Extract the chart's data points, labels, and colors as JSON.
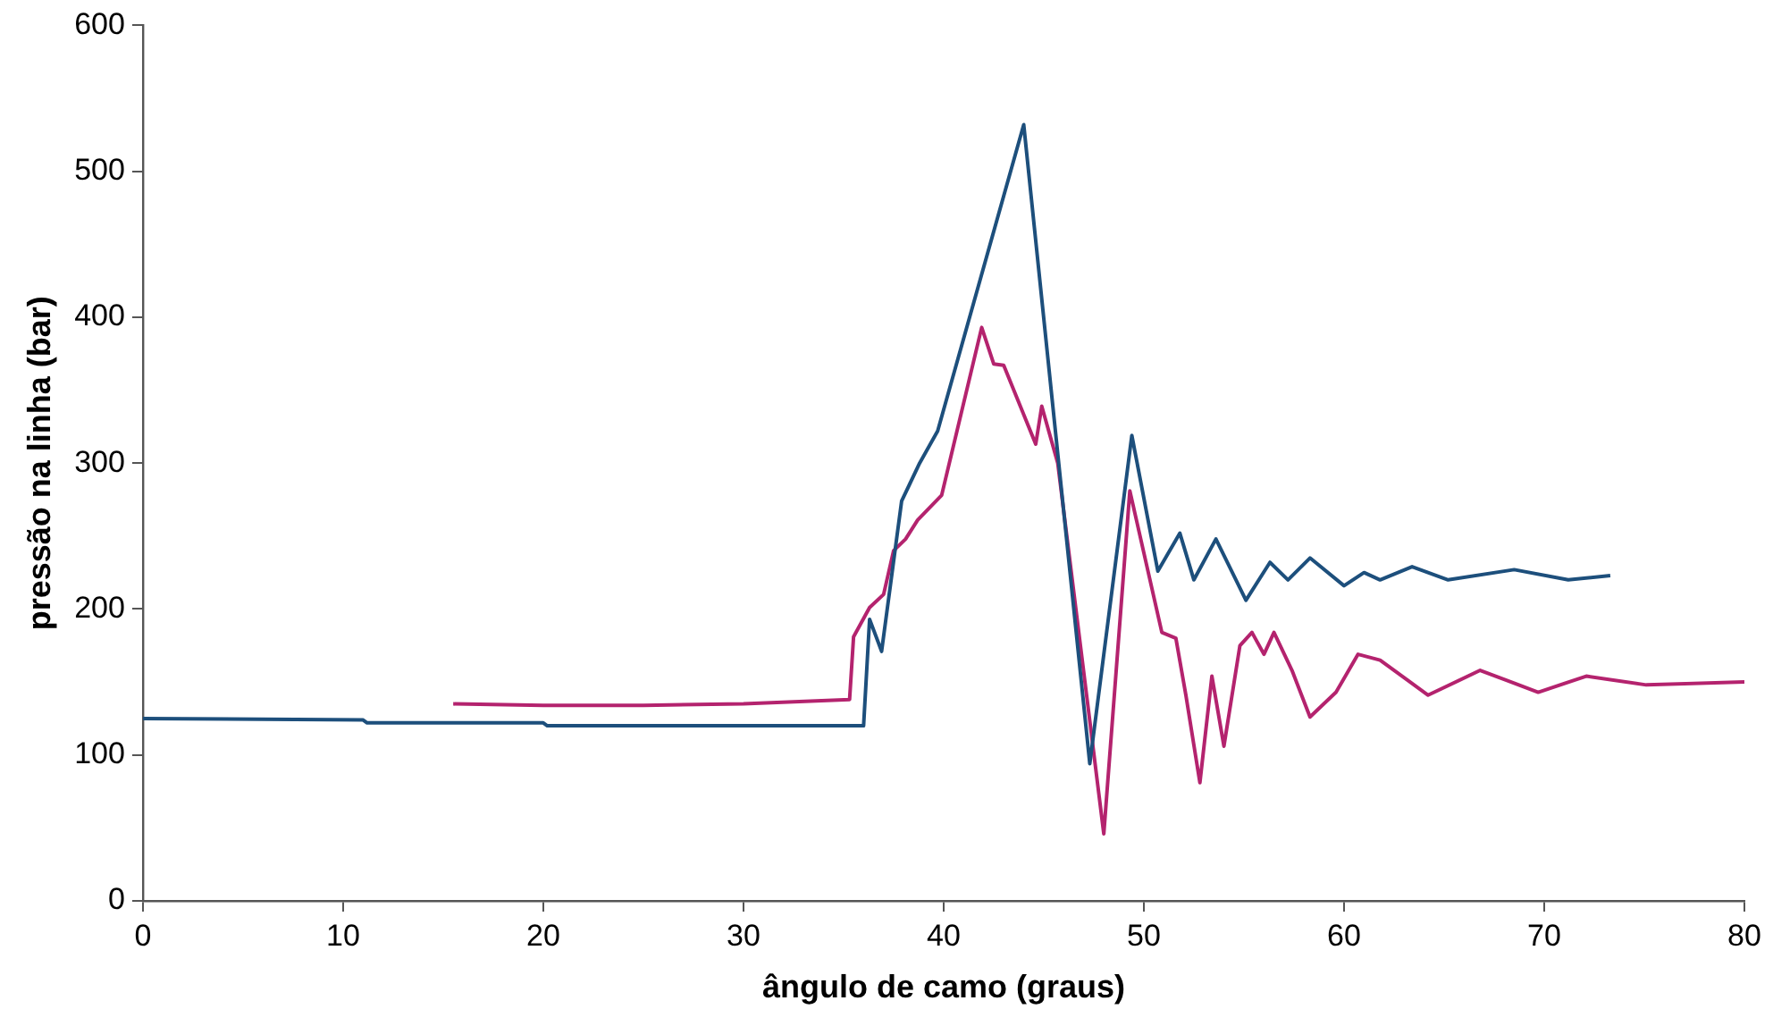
{
  "chart_data": {
    "type": "line",
    "xlabel": "ângulo de camo (graus)",
    "ylabel": "pressão na linha (bar)",
    "xlim": [
      0,
      80
    ],
    "xticks": [
      0,
      10,
      20,
      30,
      40,
      50,
      60,
      70,
      80
    ],
    "ylim": [
      0,
      600
    ],
    "yticks": [
      0,
      100,
      200,
      300,
      400,
      500,
      600
    ],
    "grid": false,
    "legend": false,
    "marker": "none",
    "line_style": "solid",
    "series": [
      {
        "color": "#1d4f7c",
        "x": [
          0,
          11,
          11.2,
          20,
          20.2,
          36,
          36.3,
          36.9,
          37.9,
          38.8,
          39.7,
          44,
          47.3,
          49.4,
          50.7,
          51.8,
          52.5,
          53.6,
          55.1,
          56.3,
          57.2,
          58.3,
          60,
          61,
          61.8,
          63.4,
          65.2,
          68.5,
          71.2,
          73.3
        ],
        "values": [
          125,
          124,
          122,
          122,
          120,
          120,
          193,
          171,
          274,
          300,
          322,
          532,
          94,
          319,
          226,
          252,
          220,
          248,
          206,
          232,
          220,
          235,
          216,
          225,
          220,
          229,
          220,
          227,
          220,
          223
        ]
      },
      {
        "color": "#b4236e",
        "x": [
          15.5,
          20,
          25,
          30,
          35.3,
          35.5,
          36.3,
          37,
          37.5,
          38.1,
          38.7,
          39.9,
          41.9,
          42.5,
          43,
          44.6,
          44.9,
          45.7,
          48,
          49.3,
          50.9,
          51.6,
          52.1,
          52.8,
          53.4,
          54,
          54.8,
          55.4,
          56,
          56.5,
          57.4,
          58.3,
          59.6,
          60.7,
          61.8,
          64.2,
          66.8,
          69.7,
          72.1,
          75.1,
          80
        ],
        "values": [
          135,
          134,
          134,
          135,
          138,
          181,
          201,
          210,
          240,
          248,
          261,
          278,
          393,
          368,
          367,
          313,
          339,
          300,
          46,
          281,
          184,
          180,
          141,
          81,
          154,
          106,
          175,
          184,
          169,
          184,
          158,
          126,
          143,
          169,
          165,
          141,
          158,
          143,
          154,
          148,
          150
        ]
      }
    ]
  }
}
